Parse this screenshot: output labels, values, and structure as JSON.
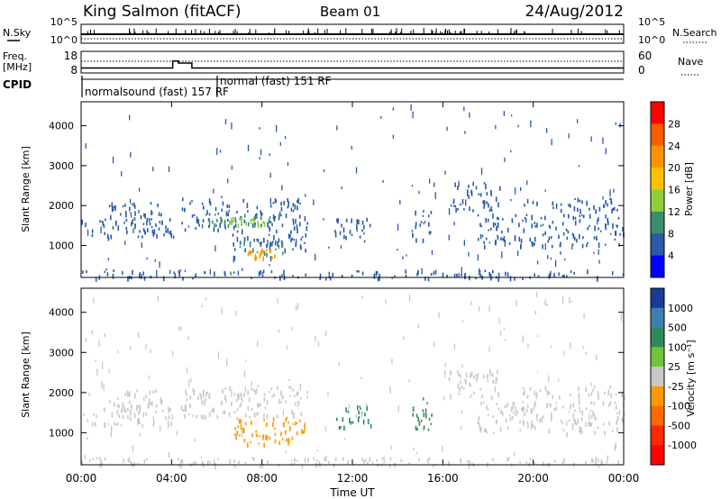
{
  "header": {
    "station": "King Salmon (fitACF)",
    "beam": "Beam 01",
    "date": "24/Aug/2012"
  },
  "summary_panels": {
    "nsky_label": "N.Sky",
    "nsky_ticks": [
      "10^5",
      "10^0"
    ],
    "nsearch_label": "N.Search",
    "nsearch_ticks": [
      "10^5",
      "10^0"
    ],
    "freq_label_1": "Freq.",
    "freq_label_2": "[MHz]",
    "freq_ticks": [
      "18",
      "8"
    ],
    "nave_label": "Nave",
    "nave_ticks": [
      "60",
      "0"
    ],
    "cpid_label": "CPID",
    "cpid_modes": [
      {
        "text": "normalsound (fast) 157 RF",
        "start_hour": 0
      },
      {
        "text": "normal (fast) 151 RF",
        "start_hour": 6
      }
    ],
    "freq_series": [
      {
        "hour": 0,
        "mhz": 10.3
      },
      {
        "hour": 4.05,
        "mhz": 10.3
      },
      {
        "hour": 4.05,
        "mhz": 13.5
      },
      {
        "hour": 4.3,
        "mhz": 13.5
      },
      {
        "hour": 4.3,
        "mhz": 12.6
      },
      {
        "hour": 4.9,
        "mhz": 12.6
      },
      {
        "hour": 4.9,
        "mhz": 10.3
      },
      {
        "hour": 24,
        "mhz": 10.3
      }
    ]
  },
  "chart_data": [
    {
      "type": "heatmap",
      "name": "power-panel",
      "ylabel": "Slant Range [km]",
      "ylim": [
        200,
        4600
      ],
      "yticks": [
        1000,
        2000,
        3000,
        4000
      ],
      "xlim": [
        0,
        24
      ],
      "colorbar": {
        "label": "Power [dB]",
        "ticks": [
          "28",
          "24",
          "20",
          "16",
          "12",
          "8",
          "4"
        ],
        "colors": [
          "#ff0000",
          "#ff5a00",
          "#ff9400",
          "#ffc200",
          "#8fcf3a",
          "#3a8f6a",
          "#2a5aa8",
          "#0000ff"
        ]
      },
      "regions": [
        {
          "t0": 0.0,
          "t1": 4.0,
          "r0": 1200,
          "r1": 1700,
          "color": "#2a5aa8"
        },
        {
          "t0": 1.2,
          "t1": 3.6,
          "r0": 1500,
          "r1": 2100,
          "color": "#2a5aa8"
        },
        {
          "t0": 4.4,
          "t1": 10.0,
          "r0": 1400,
          "r1": 2200,
          "color": "#2a5aa8"
        },
        {
          "t0": 5.5,
          "t1": 8.8,
          "r0": 1500,
          "r1": 1800,
          "color": "#3a8f6a"
        },
        {
          "t0": 6.5,
          "t1": 8.2,
          "r0": 1550,
          "r1": 1750,
          "color": "#8fcf3a"
        },
        {
          "t0": 6.5,
          "t1": 10.0,
          "r0": 900,
          "r1": 1400,
          "color": "#2a5aa8"
        },
        {
          "t0": 7.0,
          "t1": 9.0,
          "r0": 800,
          "r1": 1200,
          "color": "#3a8f6a"
        },
        {
          "t0": 7.3,
          "t1": 8.6,
          "r0": 700,
          "r1": 1000,
          "color": "#ff9400"
        },
        {
          "t0": 11.2,
          "t1": 12.8,
          "r0": 1100,
          "r1": 1700,
          "color": "#2a5aa8"
        },
        {
          "t0": 14.6,
          "t1": 15.5,
          "r0": 1100,
          "r1": 1900,
          "color": "#2a5aa8"
        },
        {
          "t0": 16.2,
          "t1": 18.5,
          "r0": 1900,
          "r1": 2600,
          "color": "#2a5aa8"
        },
        {
          "t0": 17.5,
          "t1": 24.0,
          "r0": 1000,
          "r1": 1800,
          "color": "#2a5aa8"
        },
        {
          "t0": 19.5,
          "t1": 24.0,
          "r0": 1900,
          "r1": 2200,
          "color": "#2a5aa8"
        },
        {
          "t0": 0.0,
          "t1": 24.0,
          "r0": 200,
          "r1": 400,
          "color": "#2a5aa8"
        }
      ]
    },
    {
      "type": "heatmap",
      "name": "velocity-panel",
      "ylabel": "Slant Range [km]",
      "xlabel": "Time UT",
      "ylim": [
        200,
        4600
      ],
      "yticks": [
        1000,
        2000,
        3000,
        4000
      ],
      "xlim": [
        0,
        24
      ],
      "xticks": [
        "00:00",
        "04:00",
        "08:00",
        "12:00",
        "16:00",
        "20:00",
        "00:00"
      ],
      "colorbar": {
        "label": "Velocity [m s⁻¹]",
        "ticks": [
          "1000",
          "500",
          "100",
          "25",
          "-25",
          "-100",
          "-500",
          "-1000"
        ],
        "colors": [
          "#1a3a9a",
          "#3f7fb0",
          "#2f8a5a",
          "#6fc43a",
          "#c8c8c8",
          "#ff9a00",
          "#ff6a00",
          "#ff2a00",
          "#ff0000"
        ]
      },
      "regions": [
        {
          "t0": 0.0,
          "t1": 4.0,
          "r0": 1200,
          "r1": 1700,
          "color": "#c8c8c8"
        },
        {
          "t0": 1.2,
          "t1": 3.6,
          "r0": 1500,
          "r1": 2100,
          "color": "#c8c8c8"
        },
        {
          "t0": 4.4,
          "t1": 10.0,
          "r0": 1400,
          "r1": 2200,
          "color": "#c8c8c8"
        },
        {
          "t0": 6.5,
          "t1": 10.0,
          "r0": 900,
          "r1": 1400,
          "color": "#ff9a00"
        },
        {
          "t0": 6.8,
          "t1": 9.2,
          "r0": 750,
          "r1": 1000,
          "color": "#ff9a00"
        },
        {
          "t0": 11.2,
          "t1": 12.8,
          "r0": 1100,
          "r1": 1700,
          "color": "#2f8a5a"
        },
        {
          "t0": 14.6,
          "t1": 15.5,
          "r0": 1100,
          "r1": 1900,
          "color": "#2f8a5a"
        },
        {
          "t0": 16.2,
          "t1": 18.5,
          "r0": 1900,
          "r1": 2600,
          "color": "#c8c8c8"
        },
        {
          "t0": 17.5,
          "t1": 24.0,
          "r0": 1000,
          "r1": 1800,
          "color": "#c8c8c8"
        },
        {
          "t0": 19.5,
          "t1": 24.0,
          "r0": 1900,
          "r1": 2200,
          "color": "#c8c8c8"
        },
        {
          "t0": 0.0,
          "t1": 24.0,
          "r0": 200,
          "r1": 400,
          "color": "#c8c8c8"
        }
      ]
    }
  ]
}
